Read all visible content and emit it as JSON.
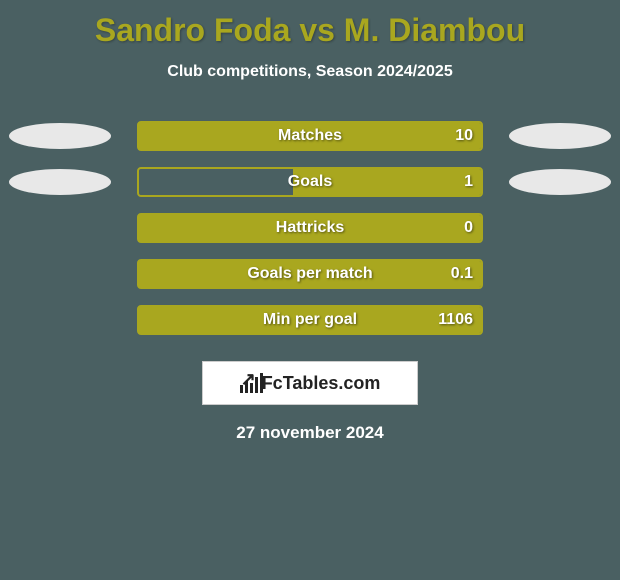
{
  "colors": {
    "background": "#4a6062",
    "title_color": "#a9a71f",
    "subtitle_color": "#ffffff",
    "bar_border": "#a9a71f",
    "bar_fill": "#a9a71f",
    "stat_text": "#ffffff",
    "logo_bg": "#ffffff",
    "logo_border": "#cccccc",
    "logo_text": "#232323",
    "date_text": "#ffffff",
    "ellipse_left": "#e8e8e8",
    "ellipse_right": "#e8e8e8"
  },
  "title": "Sandro Foda vs M. Diambou",
  "subtitle": "Club competitions, Season 2024/2025",
  "stats": [
    {
      "label": "Matches",
      "left_val": "",
      "right_val": "10",
      "left_pct": 0,
      "right_pct": 100,
      "show_left_ellipse": true,
      "show_right_ellipse": true
    },
    {
      "label": "Goals",
      "left_val": "",
      "right_val": "1",
      "left_pct": 0,
      "right_pct": 55,
      "show_left_ellipse": true,
      "show_right_ellipse": true
    },
    {
      "label": "Hattricks",
      "left_val": "",
      "right_val": "0",
      "left_pct": 0,
      "right_pct": 100,
      "show_left_ellipse": false,
      "show_right_ellipse": false
    },
    {
      "label": "Goals per match",
      "left_val": "",
      "right_val": "0.1",
      "left_pct": 0,
      "right_pct": 100,
      "show_left_ellipse": false,
      "show_right_ellipse": false
    },
    {
      "label": "Min per goal",
      "left_val": "",
      "right_val": "1106",
      "left_pct": 0,
      "right_pct": 100,
      "show_left_ellipse": false,
      "show_right_ellipse": false
    }
  ],
  "logo_text": "FcTables.com",
  "date": "27 november 2024",
  "typography": {
    "title_fontsize": 32,
    "subtitle_fontsize": 16,
    "stat_label_fontsize": 16,
    "logo_fontsize": 18,
    "date_fontsize": 17
  }
}
